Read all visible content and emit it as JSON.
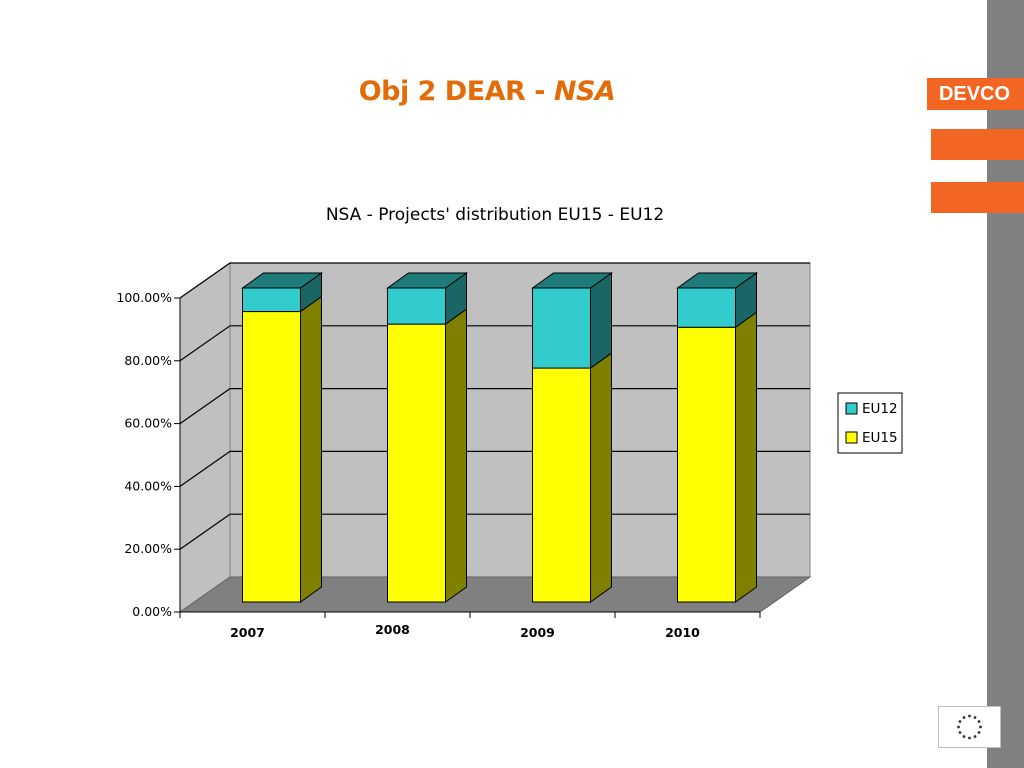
{
  "slide": {
    "title_main": "Obj 2 DEAR - ",
    "title_italic": "NSA",
    "brand": "DEVCO"
  },
  "colors": {
    "accent": "#f26522",
    "title": "#e36c0a",
    "sidebar": "#808080",
    "eu15": "#ffff00",
    "eu12": "#33cccc"
  },
  "chart_data": {
    "type": "bar",
    "stacked": true,
    "percent": true,
    "title": "NSA - Projects' distribution EU15 - EU12",
    "categories": [
      "2007",
      "2008",
      "2009",
      "2010"
    ],
    "series": [
      {
        "name": "EU15",
        "values": [
          92.5,
          88.5,
          74.5,
          87.5
        ],
        "color": "#ffff00"
      },
      {
        "name": "EU12",
        "values": [
          7.5,
          11.5,
          25.5,
          12.5
        ],
        "color": "#33cccc"
      }
    ],
    "yticks": [
      "0.00%",
      "20.00%",
      "40.00%",
      "60.00%",
      "80.00%",
      "100.00%"
    ],
    "ylim": [
      0,
      100
    ],
    "grid": true,
    "legend": {
      "position": "right",
      "entries": [
        "EU12",
        "EU15"
      ]
    }
  }
}
